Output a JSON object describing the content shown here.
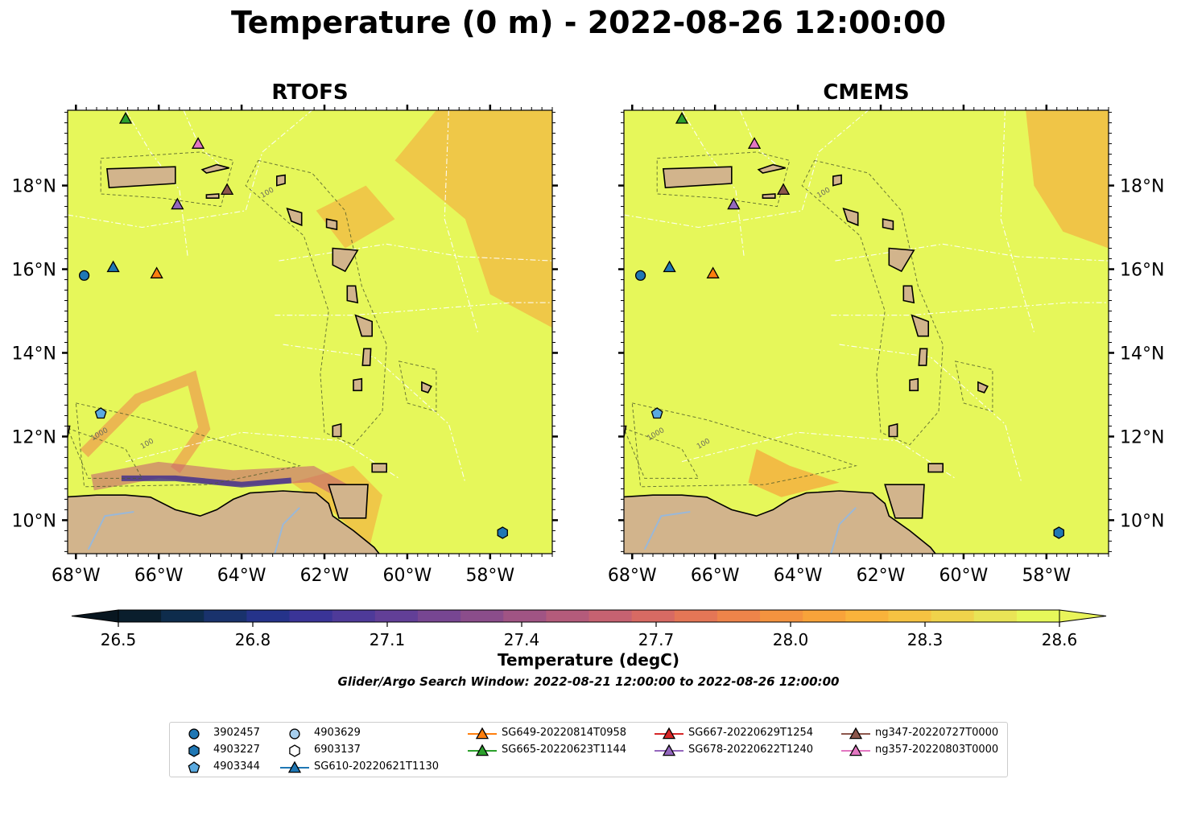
{
  "figure": {
    "title": "Temperature (0 m) - 2022-08-26 12:00:00",
    "colorbar_label": "Temperature (degC)",
    "search_window": "Glider/Argo Search Window: 2022-08-21 12:00:00 to 2022-08-26 12:00:00"
  },
  "map_data": {
    "panels": [
      {
        "title": "RTOFS",
        "lat_ticks_side": "left"
      },
      {
        "title": "CMEMS",
        "lat_ticks_side": "right"
      }
    ],
    "lon_ticks": [
      -68,
      -66,
      -64,
      -62,
      -60,
      -58
    ],
    "lon_tick_labels": [
      "68°W",
      "66°W",
      "64°W",
      "62°W",
      "60°W",
      "58°W"
    ],
    "lat_ticks": [
      10,
      12,
      14,
      16,
      18
    ],
    "lat_tick_labels": [
      "10°N",
      "12°N",
      "14°N",
      "16°N",
      "18°N"
    ],
    "lon_range": [
      -68.2,
      -56.5
    ],
    "lat_range": [
      9.2,
      19.8
    ],
    "contour_labels": [
      "100",
      "1000"
    ],
    "colors": {
      "ocean": "#e6f75a",
      "land": "#d2b48c",
      "coast": "#000000",
      "warm_patch": "#f6a33a",
      "cold_anomaly": "#3b2a8f",
      "boundary_lines": "#ffffff",
      "rivers": "#9ab8d8"
    },
    "markers": [
      {
        "label": "3902457",
        "shape": "circle",
        "color": "#1f77b4",
        "lon": -67.8,
        "lat": 15.85
      },
      {
        "label": "4903227",
        "shape": "hexagon",
        "color": "#1f77b4",
        "lon": -57.7,
        "lat": 9.7
      },
      {
        "label": "4903344",
        "shape": "pentagon",
        "color": "#5aaae0",
        "lon": -67.4,
        "lat": 12.55
      },
      {
        "label": "4903629",
        "shape": "circle",
        "color": "#a7cfee",
        "lon": null,
        "lat": null
      },
      {
        "label": "6903137",
        "shape": "hexagon",
        "color": "#ffffff",
        "lon": null,
        "lat": null
      },
      {
        "label": "SG610-20220621T1130",
        "shape": "triangle",
        "color": "#1f77b4",
        "lon": -67.1,
        "lat": 16.05
      },
      {
        "label": "SG649-20220814T0958",
        "shape": "triangle",
        "color": "#ff7f0e",
        "lon": -66.05,
        "lat": 15.9
      },
      {
        "label": "SG665-20220623T1144",
        "shape": "triangle",
        "color": "#2ca02c",
        "lon": -66.8,
        "lat": 19.6
      },
      {
        "label": "SG667-20220629T1254",
        "shape": "triangle",
        "color": "#d62728",
        "lon": null,
        "lat": null
      },
      {
        "label": "SG678-20220622T1240",
        "shape": "triangle",
        "color": "#9467bd",
        "lon": -65.55,
        "lat": 17.55
      },
      {
        "label": "ng347-20220727T0000",
        "shape": "triangle",
        "color": "#8c564b",
        "lon": -64.35,
        "lat": 17.9
      },
      {
        "label": "ng357-20220803T0000",
        "shape": "triangle",
        "color": "#e377c2",
        "lon": -65.05,
        "lat": 19.0
      }
    ]
  },
  "chart_data": {
    "type": "heatmap",
    "colorbar": {
      "vmin": 26.5,
      "vmax": 28.6,
      "ticks": [
        26.5,
        26.8,
        27.1,
        27.4,
        27.7,
        28.0,
        28.3,
        28.6
      ],
      "tick_labels": [
        "26.5",
        "26.8",
        "27.1",
        "27.4",
        "27.7",
        "28.0",
        "28.3",
        "28.6"
      ],
      "extend": "both",
      "colors": [
        "#0a1e2d",
        "#0e2c4c",
        "#19326c",
        "#25338a",
        "#3a3497",
        "#4e3a99",
        "#623f97",
        "#774692",
        "#8b4d8b",
        "#a05484",
        "#b45b7b",
        "#c66271",
        "#d76a63",
        "#e47656",
        "#ee844a",
        "#f4933f",
        "#f8a33a",
        "#f9b33b",
        "#f6c342",
        "#f0d34b",
        "#e9e456",
        "#e6f75a"
      ]
    }
  }
}
